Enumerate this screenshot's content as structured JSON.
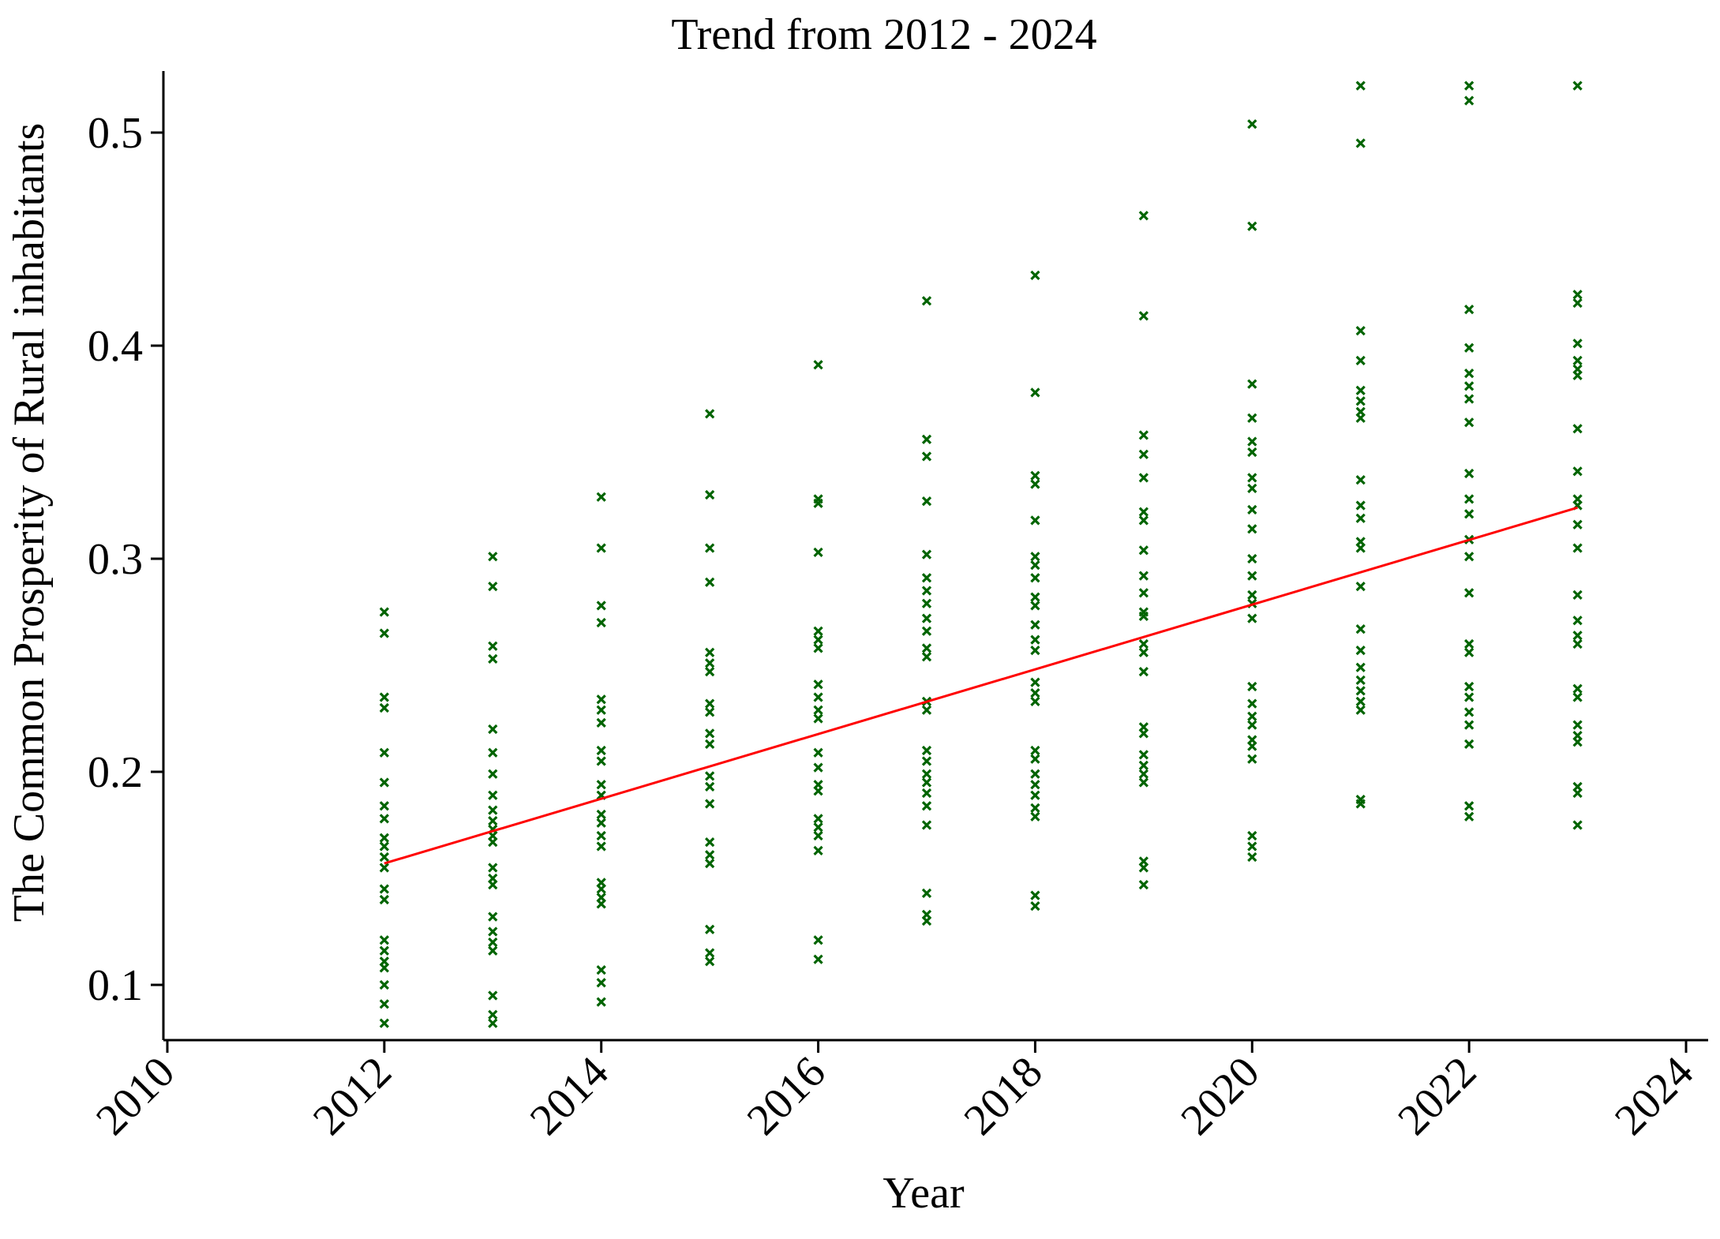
{
  "chart_data": {
    "type": "scatter",
    "title": "Trend from 2012 - 2024",
    "xlabel": "Year",
    "ylabel": "The Common Prosperity of Rural inhabitants",
    "xlim": [
      2010,
      2024
    ],
    "ylim": [
      0.075,
      0.53
    ],
    "xticks": [
      2010,
      2012,
      2014,
      2016,
      2018,
      2020,
      2022,
      2024
    ],
    "yticks": [
      0.1,
      0.2,
      0.3,
      0.4,
      0.5
    ],
    "xtick_labels": [
      "2010",
      "2012",
      "2014",
      "2016",
      "2018",
      "2020",
      "2022",
      "2024"
    ],
    "ytick_labels": [
      "0.1",
      "0.2",
      "0.3",
      "0.4",
      "0.5"
    ],
    "grid": false,
    "legend": "none",
    "colors": {
      "points": "#006400",
      "trend": "#ff0000",
      "axis": "#000000"
    },
    "marker": "x",
    "series": [
      {
        "type": "scatter",
        "points": [
          [
            2012,
            0.275
          ],
          [
            2012,
            0.265
          ],
          [
            2012,
            0.235
          ],
          [
            2012,
            0.23
          ],
          [
            2012,
            0.209
          ],
          [
            2012,
            0.195
          ],
          [
            2012,
            0.184
          ],
          [
            2012,
            0.178
          ],
          [
            2012,
            0.169
          ],
          [
            2012,
            0.165
          ],
          [
            2012,
            0.16
          ],
          [
            2012,
            0.155
          ],
          [
            2012,
            0.145
          ],
          [
            2012,
            0.14
          ],
          [
            2012,
            0.121
          ],
          [
            2012,
            0.116
          ],
          [
            2012,
            0.111
          ],
          [
            2012,
            0.108
          ],
          [
            2012,
            0.1
          ],
          [
            2012,
            0.091
          ],
          [
            2012,
            0.082
          ],
          [
            2013,
            0.301
          ],
          [
            2013,
            0.287
          ],
          [
            2013,
            0.259
          ],
          [
            2013,
            0.253
          ],
          [
            2013,
            0.22
          ],
          [
            2013,
            0.209
          ],
          [
            2013,
            0.199
          ],
          [
            2013,
            0.189
          ],
          [
            2013,
            0.182
          ],
          [
            2013,
            0.177
          ],
          [
            2013,
            0.173
          ],
          [
            2013,
            0.17
          ],
          [
            2013,
            0.167
          ],
          [
            2013,
            0.155
          ],
          [
            2013,
            0.15
          ],
          [
            2013,
            0.147
          ],
          [
            2013,
            0.132
          ],
          [
            2013,
            0.125
          ],
          [
            2013,
            0.12
          ],
          [
            2013,
            0.116
          ],
          [
            2013,
            0.095
          ],
          [
            2013,
            0.086
          ],
          [
            2013,
            0.082
          ],
          [
            2014,
            0.329
          ],
          [
            2014,
            0.305
          ],
          [
            2014,
            0.278
          ],
          [
            2014,
            0.27
          ],
          [
            2014,
            0.234
          ],
          [
            2014,
            0.229
          ],
          [
            2014,
            0.223
          ],
          [
            2014,
            0.21
          ],
          [
            2014,
            0.205
          ],
          [
            2014,
            0.194
          ],
          [
            2014,
            0.189
          ],
          [
            2014,
            0.18
          ],
          [
            2014,
            0.176
          ],
          [
            2014,
            0.17
          ],
          [
            2014,
            0.165
          ],
          [
            2014,
            0.148
          ],
          [
            2014,
            0.145
          ],
          [
            2014,
            0.141
          ],
          [
            2014,
            0.138
          ],
          [
            2014,
            0.107
          ],
          [
            2014,
            0.101
          ],
          [
            2014,
            0.092
          ],
          [
            2015,
            0.368
          ],
          [
            2015,
            0.33
          ],
          [
            2015,
            0.305
          ],
          [
            2015,
            0.289
          ],
          [
            2015,
            0.256
          ],
          [
            2015,
            0.251
          ],
          [
            2015,
            0.247
          ],
          [
            2015,
            0.232
          ],
          [
            2015,
            0.228
          ],
          [
            2015,
            0.218
          ],
          [
            2015,
            0.213
          ],
          [
            2015,
            0.198
          ],
          [
            2015,
            0.193
          ],
          [
            2015,
            0.185
          ],
          [
            2015,
            0.167
          ],
          [
            2015,
            0.161
          ],
          [
            2015,
            0.157
          ],
          [
            2015,
            0.126
          ],
          [
            2015,
            0.115
          ],
          [
            2015,
            0.111
          ],
          [
            2016,
            0.391
          ],
          [
            2016,
            0.328
          ],
          [
            2016,
            0.326
          ],
          [
            2016,
            0.303
          ],
          [
            2016,
            0.266
          ],
          [
            2016,
            0.262
          ],
          [
            2016,
            0.258
          ],
          [
            2016,
            0.241
          ],
          [
            2016,
            0.235
          ],
          [
            2016,
            0.229
          ],
          [
            2016,
            0.225
          ],
          [
            2016,
            0.209
          ],
          [
            2016,
            0.202
          ],
          [
            2016,
            0.194
          ],
          [
            2016,
            0.191
          ],
          [
            2016,
            0.178
          ],
          [
            2016,
            0.174
          ],
          [
            2016,
            0.17
          ],
          [
            2016,
            0.163
          ],
          [
            2016,
            0.121
          ],
          [
            2016,
            0.112
          ],
          [
            2017,
            0.421
          ],
          [
            2017,
            0.356
          ],
          [
            2017,
            0.348
          ],
          [
            2017,
            0.327
          ],
          [
            2017,
            0.302
          ],
          [
            2017,
            0.291
          ],
          [
            2017,
            0.285
          ],
          [
            2017,
            0.279
          ],
          [
            2017,
            0.272
          ],
          [
            2017,
            0.266
          ],
          [
            2017,
            0.258
          ],
          [
            2017,
            0.254
          ],
          [
            2017,
            0.233
          ],
          [
            2017,
            0.229
          ],
          [
            2017,
            0.21
          ],
          [
            2017,
            0.205
          ],
          [
            2017,
            0.199
          ],
          [
            2017,
            0.195
          ],
          [
            2017,
            0.19
          ],
          [
            2017,
            0.184
          ],
          [
            2017,
            0.175
          ],
          [
            2017,
            0.143
          ],
          [
            2017,
            0.133
          ],
          [
            2017,
            0.13
          ],
          [
            2018,
            0.433
          ],
          [
            2018,
            0.378
          ],
          [
            2018,
            0.339
          ],
          [
            2018,
            0.335
          ],
          [
            2018,
            0.318
          ],
          [
            2018,
            0.301
          ],
          [
            2018,
            0.297
          ],
          [
            2018,
            0.291
          ],
          [
            2018,
            0.282
          ],
          [
            2018,
            0.278
          ],
          [
            2018,
            0.269
          ],
          [
            2018,
            0.262
          ],
          [
            2018,
            0.257
          ],
          [
            2018,
            0.242
          ],
          [
            2018,
            0.237
          ],
          [
            2018,
            0.233
          ],
          [
            2018,
            0.21
          ],
          [
            2018,
            0.206
          ],
          [
            2018,
            0.199
          ],
          [
            2018,
            0.194
          ],
          [
            2018,
            0.189
          ],
          [
            2018,
            0.183
          ],
          [
            2018,
            0.179
          ],
          [
            2018,
            0.142
          ],
          [
            2018,
            0.137
          ],
          [
            2019,
            0.461
          ],
          [
            2019,
            0.414
          ],
          [
            2019,
            0.358
          ],
          [
            2019,
            0.349
          ],
          [
            2019,
            0.338
          ],
          [
            2019,
            0.322
          ],
          [
            2019,
            0.318
          ],
          [
            2019,
            0.304
          ],
          [
            2019,
            0.292
          ],
          [
            2019,
            0.284
          ],
          [
            2019,
            0.275
          ],
          [
            2019,
            0.273
          ],
          [
            2019,
            0.26
          ],
          [
            2019,
            0.256
          ],
          [
            2019,
            0.247
          ],
          [
            2019,
            0.221
          ],
          [
            2019,
            0.218
          ],
          [
            2019,
            0.208
          ],
          [
            2019,
            0.203
          ],
          [
            2019,
            0.199
          ],
          [
            2019,
            0.195
          ],
          [
            2019,
            0.158
          ],
          [
            2019,
            0.155
          ],
          [
            2019,
            0.147
          ],
          [
            2020,
            0.504
          ],
          [
            2020,
            0.456
          ],
          [
            2020,
            0.382
          ],
          [
            2020,
            0.366
          ],
          [
            2020,
            0.355
          ],
          [
            2020,
            0.35
          ],
          [
            2020,
            0.338
          ],
          [
            2020,
            0.333
          ],
          [
            2020,
            0.323
          ],
          [
            2020,
            0.314
          ],
          [
            2020,
            0.3
          ],
          [
            2020,
            0.292
          ],
          [
            2020,
            0.283
          ],
          [
            2020,
            0.279
          ],
          [
            2020,
            0.272
          ],
          [
            2020,
            0.24
          ],
          [
            2020,
            0.232
          ],
          [
            2020,
            0.226
          ],
          [
            2020,
            0.222
          ],
          [
            2020,
            0.215
          ],
          [
            2020,
            0.212
          ],
          [
            2020,
            0.206
          ],
          [
            2020,
            0.17
          ],
          [
            2020,
            0.165
          ],
          [
            2020,
            0.16
          ],
          [
            2021,
            0.522
          ],
          [
            2021,
            0.495
          ],
          [
            2021,
            0.407
          ],
          [
            2021,
            0.393
          ],
          [
            2021,
            0.379
          ],
          [
            2021,
            0.374
          ],
          [
            2021,
            0.369
          ],
          [
            2021,
            0.366
          ],
          [
            2021,
            0.337
          ],
          [
            2021,
            0.325
          ],
          [
            2021,
            0.319
          ],
          [
            2021,
            0.308
          ],
          [
            2021,
            0.305
          ],
          [
            2021,
            0.287
          ],
          [
            2021,
            0.267
          ],
          [
            2021,
            0.257
          ],
          [
            2021,
            0.249
          ],
          [
            2021,
            0.243
          ],
          [
            2021,
            0.238
          ],
          [
            2021,
            0.233
          ],
          [
            2021,
            0.229
          ],
          [
            2021,
            0.187
          ],
          [
            2021,
            0.185
          ],
          [
            2022,
            0.522
          ],
          [
            2022,
            0.515
          ],
          [
            2022,
            0.417
          ],
          [
            2022,
            0.399
          ],
          [
            2022,
            0.387
          ],
          [
            2022,
            0.381
          ],
          [
            2022,
            0.375
          ],
          [
            2022,
            0.364
          ],
          [
            2022,
            0.34
          ],
          [
            2022,
            0.328
          ],
          [
            2022,
            0.321
          ],
          [
            2022,
            0.309
          ],
          [
            2022,
            0.301
          ],
          [
            2022,
            0.284
          ],
          [
            2022,
            0.26
          ],
          [
            2022,
            0.256
          ],
          [
            2022,
            0.24
          ],
          [
            2022,
            0.235
          ],
          [
            2022,
            0.228
          ],
          [
            2022,
            0.222
          ],
          [
            2022,
            0.213
          ],
          [
            2022,
            0.184
          ],
          [
            2022,
            0.179
          ],
          [
            2023,
            0.522
          ],
          [
            2023,
            0.424
          ],
          [
            2023,
            0.42
          ],
          [
            2023,
            0.401
          ],
          [
            2023,
            0.393
          ],
          [
            2023,
            0.389
          ],
          [
            2023,
            0.386
          ],
          [
            2023,
            0.361
          ],
          [
            2023,
            0.341
          ],
          [
            2023,
            0.328
          ],
          [
            2023,
            0.325
          ],
          [
            2023,
            0.316
          ],
          [
            2023,
            0.305
          ],
          [
            2023,
            0.283
          ],
          [
            2023,
            0.271
          ],
          [
            2023,
            0.264
          ],
          [
            2023,
            0.26
          ],
          [
            2023,
            0.239
          ],
          [
            2023,
            0.235
          ],
          [
            2023,
            0.222
          ],
          [
            2023,
            0.217
          ],
          [
            2023,
            0.214
          ],
          [
            2023,
            0.193
          ],
          [
            2023,
            0.19
          ],
          [
            2023,
            0.175
          ]
        ]
      },
      {
        "type": "line",
        "points": [
          [
            2012,
            0.157
          ],
          [
            2023,
            0.324
          ]
        ]
      }
    ]
  }
}
